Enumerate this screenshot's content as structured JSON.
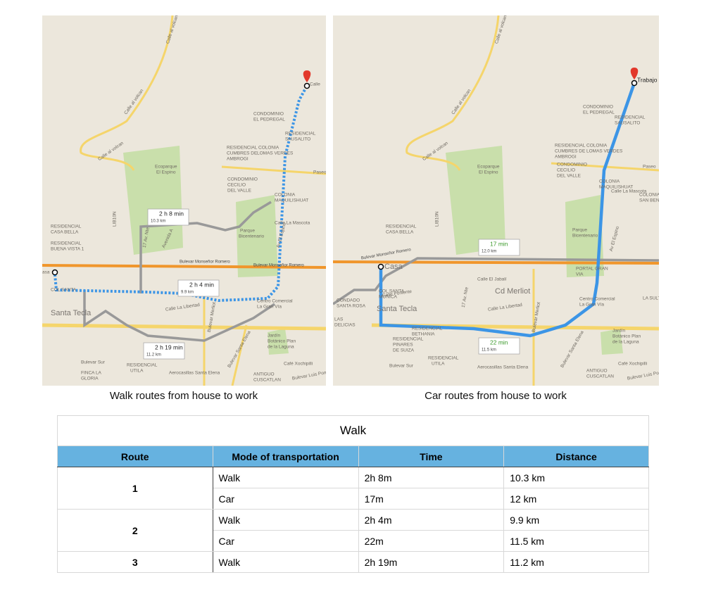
{
  "maps": [
    {
      "caption": "Walk routes from house to work",
      "labels": [
        "Calle al volcan",
        "Calle al volcan",
        "Calle al volcan",
        "Ecoparque",
        "El Espino",
        "LIB10N",
        "RESIDENCIAL",
        "CASA BELLA",
        "RESIDENCIAL",
        "BUENA VISTA 1",
        "Bulevar Monseñor Romero",
        "Bulevar Monseñor Romero",
        "COL SANTA",
        "Santa Tecla",
        "Calle La Libertad",
        "17 Av. Nte",
        "Avenida A",
        "Bulevar Merliot",
        "Centro Comercial",
        "La Gran Vía",
        "Jardín",
        "Botánico Plan",
        "de la Laguna",
        "Bulevar Santa Elena",
        "Aerocasillas Santa Elena",
        "Bulevar Sur",
        "FINCA LA",
        "GLORIA",
        "RESIDENCIAL",
        "UTILA",
        "ANTIGUO",
        "CUSCATLAN",
        "Café Xochipilli",
        "Bulevar Luis Poma",
        "Parque",
        "Bicentenario",
        "Calle La Mascota",
        "Paseo",
        "CONDOMINIO",
        "EL PEDREGAL",
        "RESIDENCIAL",
        "CUMBRES DE",
        "AMBROGI",
        "COLONIA",
        "LOMAS VERDES",
        "CONDOMINIO",
        "CECILIO",
        "DEL VALLE",
        "COLONIA",
        "MAQUILISHUAT",
        "Av El Espino",
        "RESIDENCIAL",
        "SAUSALITO",
        "Calle",
        "asa"
      ],
      "routes": [
        {
          "time": "2 h 8 min",
          "distance": "10.3 km"
        },
        {
          "time": "2 h 4 min",
          "distance": "9.9 km"
        },
        {
          "time": "2 h 19 min",
          "distance": "11.2 km"
        }
      ]
    },
    {
      "caption": "Car routes from house to work",
      "labels": [
        "Calle al volcan",
        "Calle al volcan",
        "Calle al volcan",
        "Ecoparque",
        "El Espino",
        "LIB10N",
        "RESIDENCIAL",
        "CASA BELLA",
        "Bulevar Monseñor Romero",
        "Casa",
        "Calle Poniente",
        "Calle El Jabalí",
        "Cd Merliot",
        "COL SANTA",
        "MONICA",
        "Santa Tecla",
        "Calle La Libertad",
        "17 Av. Nte",
        "Bulevar Merliot",
        "CONDADO",
        "SANTA ROSA",
        "LAS",
        "DELICIAS",
        "RESIDENCIAL",
        "BETHANIA",
        "RESIDENCIAL",
        "PINARES",
        "DE SUIZA",
        "Bulevar Sur",
        "RESIDENCIAL",
        "UTILA",
        "Aerocasillas Santa Elena",
        "Centro Comercial",
        "La Gran Vía",
        "PORTAL GRAN",
        "VIA",
        "Jardín",
        "Botánico Plan",
        "de la Laguna",
        "Bulevar Santa Elena",
        "ANTIGUO",
        "CUSCATLAN",
        "Café Xochipilli",
        "Bulevar Luis Poma",
        "Parque",
        "Bicentenario",
        "Calle La Mascota",
        "Paseo",
        "CONDOMINIO",
        "EL PEDREGAL",
        "RESIDENCIAL",
        "CUMBRES DE",
        "AMBROGI",
        "COLONIA",
        "LOMAS VERDES",
        "CONDOMINIO",
        "CECILIO",
        "DEL VALLE",
        "COLONIA",
        "MAQUILISHUAT",
        "Av El Espino",
        "RESIDENCIAL",
        "SAUSALITO",
        "COLONIA",
        "SAN BENITO",
        "LA SULTANA",
        "Trabajo"
      ],
      "routes": [
        {
          "time": "17 min",
          "distance": "12.0 km"
        },
        {
          "time": "22 min",
          "distance": "11.5 km"
        }
      ]
    }
  ],
  "table": {
    "title": "Walk",
    "header": [
      "Route",
      "Mode of transportation",
      "Time",
      "Distance"
    ],
    "rows": [
      {
        "route": "1",
        "modes": [
          [
            "Walk",
            "2h 8m",
            "10.3 km"
          ],
          [
            "Car",
            "17m",
            "12 km"
          ]
        ]
      },
      {
        "route": "2",
        "modes": [
          [
            "Walk",
            "2h 4m",
            "9.9 km"
          ],
          [
            "Car",
            "22m",
            "11.5 km"
          ]
        ]
      },
      {
        "route": "3",
        "modes": [
          [
            "Walk",
            "2h 19m",
            "11.2 km"
          ]
        ]
      }
    ]
  }
}
